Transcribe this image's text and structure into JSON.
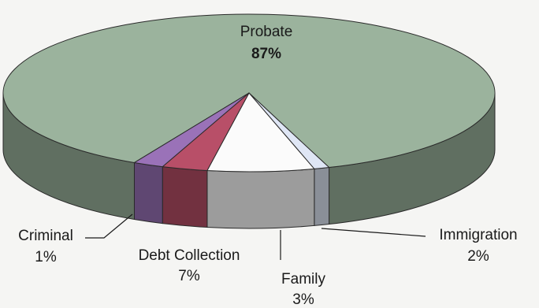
{
  "chart_data": {
    "type": "pie",
    "style": "3d",
    "slices": [
      {
        "label": "Probate",
        "value": 87,
        "display": "87%",
        "color": "#9bb39d"
      },
      {
        "label": "Criminal",
        "value": 1,
        "display": "1%",
        "color": "#dfe6f5"
      },
      {
        "label": "Debt Collection",
        "value": 7,
        "display": "7%",
        "color": "#fbfbfb"
      },
      {
        "label": "Family",
        "value": 3,
        "display": "3%",
        "color": "#b84f68"
      },
      {
        "label": "Immigration",
        "value": 2,
        "display": "2%",
        "color": "#9a72b8"
      }
    ],
    "title": "",
    "legend": "none"
  }
}
